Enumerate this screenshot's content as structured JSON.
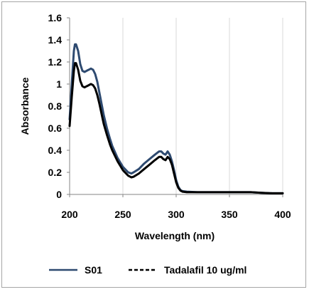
{
  "chart_data": {
    "type": "line",
    "xlabel": "Wavelength (nm)",
    "ylabel": "Absorbance",
    "xlim": [
      200,
      400
    ],
    "ylim": [
      0,
      1.6
    ],
    "x_ticks": [
      "200",
      "250",
      "300",
      "350",
      "400"
    ],
    "y_ticks": [
      "0",
      "0.2",
      "0.4",
      "0.6",
      "0.8",
      "1",
      "1.2",
      "1.4",
      "1.6"
    ],
    "grid": "vertical",
    "legend_position": "bottom",
    "series": [
      {
        "name": "S01",
        "color": "#2e4a70",
        "style": "solid",
        "x": [
          200,
          202,
          204,
          205,
          206,
          208,
          210,
          212,
          214,
          216,
          218,
          220,
          222,
          224,
          226,
          228,
          230,
          232,
          235,
          238,
          240,
          245,
          250,
          255,
          258,
          260,
          265,
          270,
          275,
          280,
          284,
          286,
          288,
          290,
          292,
          294,
          296,
          298,
          300,
          302,
          304,
          306,
          310,
          320,
          330,
          340,
          350,
          360,
          370,
          380,
          390,
          400
        ],
        "y": [
          0.68,
          1.0,
          1.3,
          1.36,
          1.36,
          1.3,
          1.18,
          1.12,
          1.11,
          1.12,
          1.13,
          1.14,
          1.13,
          1.09,
          1.02,
          0.92,
          0.82,
          0.72,
          0.6,
          0.5,
          0.44,
          0.33,
          0.25,
          0.2,
          0.19,
          0.2,
          0.23,
          0.28,
          0.32,
          0.36,
          0.39,
          0.39,
          0.37,
          0.36,
          0.39,
          0.36,
          0.3,
          0.22,
          0.13,
          0.07,
          0.04,
          0.03,
          0.025,
          0.02,
          0.02,
          0.02,
          0.02,
          0.02,
          0.02,
          0.015,
          0.01,
          0.01
        ]
      },
      {
        "name": "Tadalafil 10 ug/ml",
        "color": "#000000",
        "style": "dashed",
        "x": [
          200,
          202,
          204,
          205,
          206,
          208,
          210,
          212,
          214,
          216,
          218,
          220,
          222,
          224,
          226,
          228,
          230,
          232,
          235,
          238,
          240,
          245,
          250,
          255,
          258,
          260,
          265,
          270,
          275,
          280,
          284,
          286,
          288,
          290,
          292,
          294,
          296,
          298,
          300,
          302,
          304,
          306,
          310,
          320,
          330,
          340,
          350,
          360,
          370,
          380,
          390,
          400
        ],
        "y": [
          0.62,
          0.88,
          1.12,
          1.19,
          1.19,
          1.13,
          1.03,
          0.98,
          0.97,
          0.98,
          0.99,
          1.0,
          0.99,
          0.96,
          0.9,
          0.82,
          0.73,
          0.64,
          0.54,
          0.45,
          0.4,
          0.3,
          0.22,
          0.17,
          0.155,
          0.16,
          0.19,
          0.23,
          0.27,
          0.31,
          0.34,
          0.34,
          0.32,
          0.31,
          0.34,
          0.32,
          0.27,
          0.19,
          0.11,
          0.06,
          0.035,
          0.025,
          0.02,
          0.02,
          0.02,
          0.02,
          0.02,
          0.02,
          0.02,
          0.015,
          0.01,
          0.01
        ]
      }
    ]
  }
}
